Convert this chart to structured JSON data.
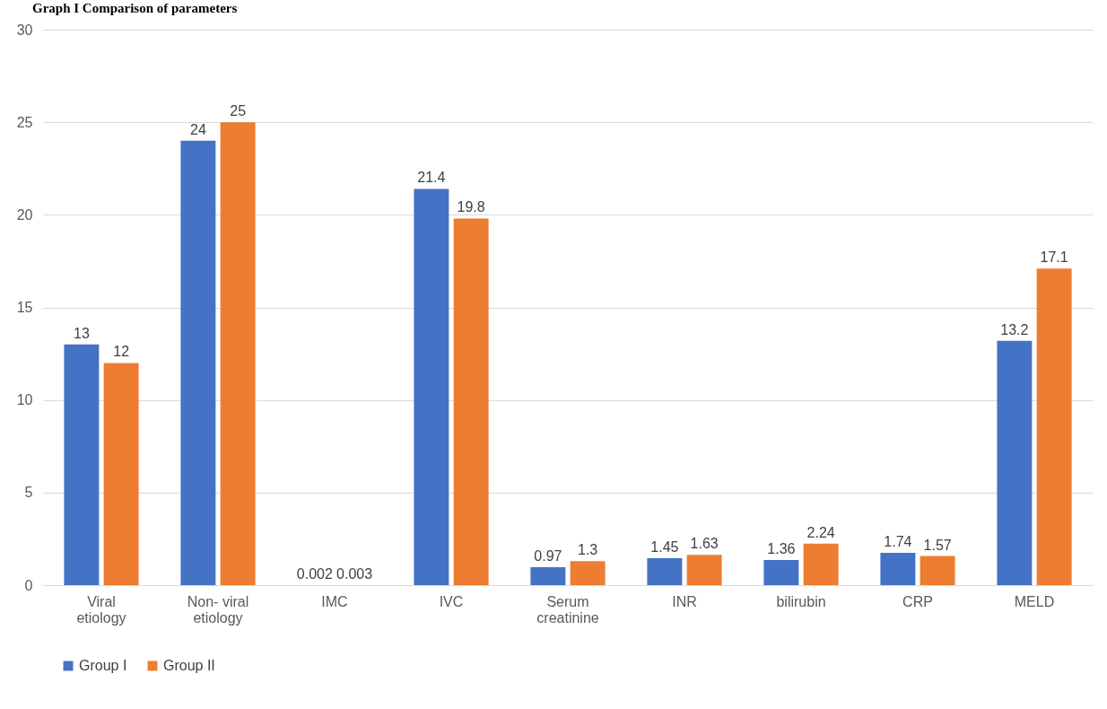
{
  "chart_data": {
    "type": "bar",
    "title": "Graph I Comparison of parameters",
    "categories": [
      "Viral etiology",
      "Non- viral etiology",
      "IMC",
      "IVC",
      "Serum creatinine",
      "INR",
      "bilirubin",
      "CRP",
      "MELD"
    ],
    "series": [
      {
        "name": "Group I",
        "color": "#4472c4",
        "values": [
          13,
          24,
          0.002,
          21.4,
          0.97,
          1.45,
          1.36,
          1.74,
          13.2
        ]
      },
      {
        "name": "Group II",
        "color": "#ed7d31",
        "values": [
          12,
          25,
          0.003,
          19.8,
          1.3,
          1.63,
          2.24,
          1.57,
          17.1
        ]
      }
    ],
    "ylim": [
      0,
      30
    ],
    "yticks": [
      0,
      5,
      10,
      15,
      20,
      25,
      30
    ],
    "grid": "y",
    "legend": "bottom",
    "data_labels": true
  }
}
